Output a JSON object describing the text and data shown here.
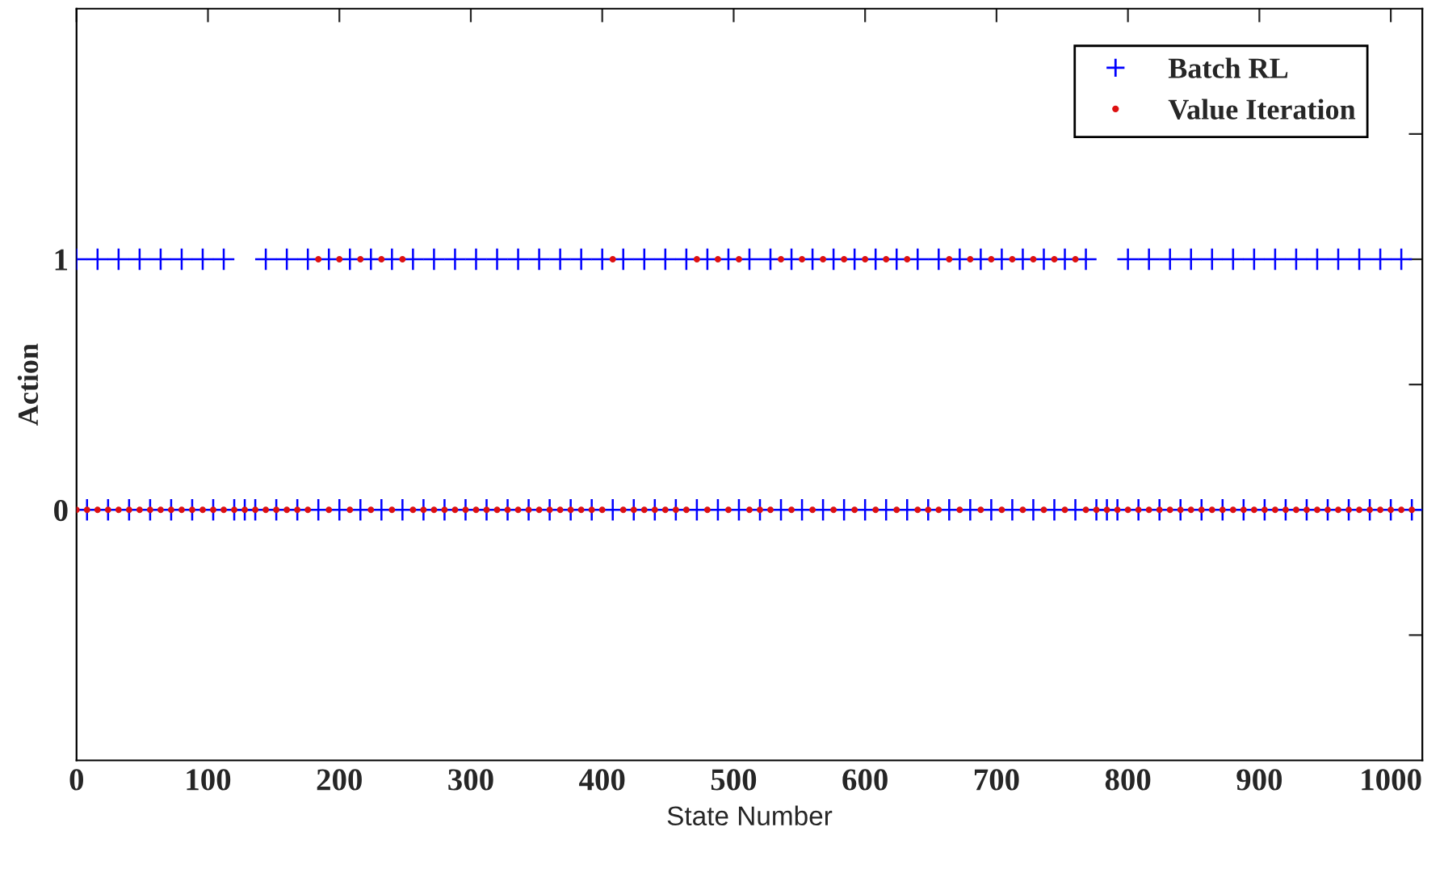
{
  "chart_data": {
    "type": "scatter",
    "xlabel": "State Number",
    "ylabel": "Action",
    "x": [
      0,
      8,
      16,
      24,
      32,
      40,
      48,
      56,
      64,
      72,
      80,
      88,
      96,
      104,
      112,
      120,
      128,
      136,
      144,
      152,
      160,
      168,
      176,
      184,
      192,
      200,
      208,
      216,
      224,
      232,
      240,
      248,
      256,
      264,
      272,
      280,
      288,
      296,
      304,
      312,
      320,
      328,
      336,
      344,
      352,
      360,
      368,
      376,
      384,
      392,
      400,
      408,
      416,
      424,
      432,
      440,
      448,
      456,
      464,
      472,
      480,
      488,
      496,
      504,
      512,
      520,
      528,
      536,
      544,
      552,
      560,
      568,
      576,
      584,
      592,
      600,
      608,
      616,
      624,
      632,
      640,
      648,
      656,
      664,
      672,
      680,
      688,
      696,
      704,
      712,
      720,
      728,
      736,
      744,
      752,
      760,
      768,
      776,
      784,
      792,
      800,
      808,
      816,
      824,
      832,
      840,
      848,
      856,
      864,
      872,
      880,
      888,
      896,
      904,
      912,
      920,
      928,
      936,
      944,
      952,
      960,
      968,
      976,
      984,
      992,
      1000,
      1008,
      1016
    ],
    "series": [
      {
        "name": "Batch RL",
        "color": "#0000ff",
        "marker": "cross",
        "values": [
          1,
          0,
          1,
          0,
          1,
          0,
          1,
          0,
          1,
          0,
          1,
          0,
          1,
          0,
          1,
          0,
          0,
          0,
          1,
          0,
          1,
          0,
          1,
          0,
          1,
          0,
          1,
          0,
          1,
          0,
          1,
          0,
          1,
          0,
          1,
          0,
          1,
          0,
          1,
          0,
          1,
          0,
          1,
          0,
          1,
          0,
          1,
          0,
          1,
          0,
          1,
          0,
          1,
          0,
          1,
          0,
          1,
          0,
          1,
          0,
          1,
          0,
          1,
          0,
          1,
          0,
          1,
          0,
          1,
          0,
          1,
          0,
          1,
          0,
          1,
          0,
          1,
          0,
          1,
          0,
          1,
          0,
          1,
          0,
          1,
          0,
          1,
          0,
          1,
          0,
          1,
          0,
          1,
          0,
          1,
          0,
          1,
          0,
          0,
          0,
          1,
          0,
          1,
          0,
          1,
          0,
          1,
          0,
          1,
          0,
          1,
          0,
          1,
          0,
          1,
          0,
          1,
          0,
          1,
          0,
          1,
          0,
          1,
          0,
          1,
          0,
          1,
          0
        ]
      },
      {
        "name": "Value Iteration",
        "color": "#dd1111",
        "marker": "circle",
        "values": [
          0,
          0,
          0,
          0,
          0,
          0,
          0,
          0,
          0,
          0,
          0,
          0,
          0,
          0,
          0,
          0,
          0,
          0,
          0,
          0,
          0,
          0,
          0,
          1,
          0,
          1,
          0,
          1,
          0,
          1,
          0,
          1,
          0,
          0,
          0,
          0,
          0,
          0,
          0,
          0,
          0,
          0,
          0,
          0,
          0,
          0,
          0,
          0,
          0,
          0,
          0,
          1,
          0,
          0,
          0,
          0,
          0,
          0,
          0,
          1,
          0,
          1,
          0,
          1,
          0,
          0,
          0,
          1,
          0,
          1,
          0,
          1,
          0,
          1,
          0,
          1,
          0,
          1,
          0,
          1,
          0,
          0,
          0,
          1,
          0,
          1,
          0,
          1,
          0,
          1,
          0,
          1,
          0,
          1,
          0,
          1,
          0,
          0,
          0,
          0,
          0,
          0,
          0,
          0,
          0,
          0,
          0,
          0,
          0,
          0,
          0,
          0,
          0,
          0,
          0,
          0,
          0,
          0,
          0,
          0,
          0,
          0,
          0,
          0,
          0,
          0,
          0,
          0
        ]
      }
    ],
    "xlim": [
      0,
      1024
    ],
    "xticks": [
      0,
      100,
      200,
      300,
      400,
      500,
      600,
      700,
      800,
      900,
      1000
    ],
    "ylim": [
      -1,
      2
    ],
    "yticks": [
      {
        "value": -0.5,
        "label": null
      },
      0,
      {
        "value": 0.5,
        "label": null
      },
      1,
      {
        "value": 1.5,
        "label": null
      }
    ],
    "grid": false,
    "legend": "top right"
  }
}
